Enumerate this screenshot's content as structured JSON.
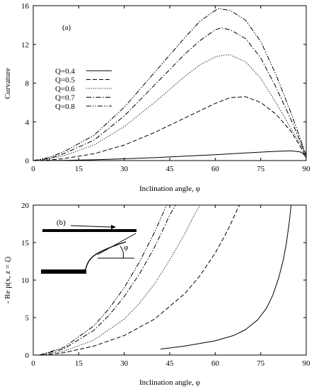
{
  "chart_data": [
    {
      "type": "line",
      "panel_label": "(a)",
      "xlabel": "Inclination angle, φ",
      "ylabel": "Curvature",
      "xlim": [
        0,
        90
      ],
      "ylim": [
        0,
        16
      ],
      "xticks": [
        "0",
        "15",
        "30",
        "45",
        "60",
        "75",
        "90"
      ],
      "yticks": [
        "0",
        "4",
        "8",
        "12",
        "16"
      ],
      "legend_position": "left",
      "series": [
        {
          "name": "Q=0.4",
          "dash": "solid",
          "x": [
            0,
            10,
            20,
            30,
            40,
            50,
            60,
            70,
            80,
            85,
            88,
            89,
            90
          ],
          "y": [
            0,
            0.02,
            0.08,
            0.18,
            0.3,
            0.45,
            0.6,
            0.78,
            0.95,
            1.0,
            0.9,
            0.7,
            0.3
          ]
        },
        {
          "name": "Q=0.5",
          "dash": "dashed",
          "x": [
            0,
            5,
            10,
            20,
            30,
            40,
            50,
            60,
            65,
            70,
            75,
            80,
            85,
            88,
            90
          ],
          "y": [
            0,
            0.05,
            0.2,
            0.7,
            1.6,
            2.9,
            4.4,
            5.9,
            6.5,
            6.6,
            6.0,
            4.8,
            3.0,
            1.5,
            0.3
          ]
        },
        {
          "name": "Q=0.6",
          "dash": "dotted",
          "x": [
            0,
            5,
            10,
            20,
            30,
            40,
            50,
            55,
            60,
            63,
            65,
            70,
            75,
            80,
            85,
            88,
            90
          ],
          "y": [
            0,
            0.15,
            0.5,
            1.6,
            3.5,
            6.0,
            8.7,
            9.9,
            10.7,
            10.9,
            10.9,
            10.2,
            8.5,
            6.0,
            3.3,
            1.7,
            0.4
          ]
        },
        {
          "name": "Q=0.7",
          "dash": "dash-dot",
          "x": [
            0,
            5,
            10,
            20,
            30,
            40,
            50,
            55,
            60,
            62,
            65,
            70,
            75,
            80,
            85,
            88,
            90
          ],
          "y": [
            0,
            0.2,
            0.7,
            2.1,
            4.6,
            7.8,
            11.0,
            12.4,
            13.5,
            13.7,
            13.5,
            12.6,
            10.6,
            7.6,
            4.2,
            2.0,
            0.5
          ]
        },
        {
          "name": "Q=0.8",
          "dash": "dash-dot-dot",
          "x": [
            0,
            5,
            10,
            20,
            30,
            40,
            50,
            55,
            60,
            61,
            65,
            70,
            75,
            80,
            85,
            88,
            90
          ],
          "y": [
            0,
            0.3,
            0.9,
            2.6,
            5.5,
            9.1,
            12.7,
            14.4,
            15.5,
            15.7,
            15.5,
            14.5,
            12.3,
            8.9,
            4.9,
            2.3,
            0.5
          ]
        }
      ]
    },
    {
      "type": "line",
      "panel_label": "(b)",
      "xlabel": "Inclination angle, φ",
      "ylabel": "- Re p(x, z = ζ)",
      "xlim": [
        0,
        90
      ],
      "ylim": [
        0,
        20
      ],
      "xticks": [
        "0",
        "15",
        "30",
        "45",
        "60",
        "75",
        "90"
      ],
      "yticks": [
        "0",
        "5",
        "10",
        "15",
        "20"
      ],
      "inset_label": "φ",
      "series": [
        {
          "name": "Q=0.4",
          "dash": "solid",
          "x": [
            42,
            50,
            60,
            66,
            70,
            74,
            77,
            79,
            81,
            82.5,
            83.5,
            84.5,
            85
          ],
          "y": [
            0.8,
            1.2,
            1.9,
            2.6,
            3.4,
            4.7,
            6.3,
            8.0,
            10.4,
            12.8,
            15.0,
            18.0,
            20
          ]
        },
        {
          "name": "Q=0.5",
          "dash": "dashed",
          "x": [
            3,
            10,
            20,
            30,
            40,
            50,
            55,
            60,
            63,
            65,
            67,
            68
          ],
          "y": [
            0,
            0.3,
            1.2,
            2.6,
            4.8,
            8.2,
            10.6,
            13.6,
            15.8,
            17.4,
            19.2,
            20
          ]
        },
        {
          "name": "Q=0.6",
          "dash": "dotted",
          "x": [
            2,
            10,
            20,
            30,
            35,
            40,
            45,
            50,
            53,
            55
          ],
          "y": [
            0,
            0.5,
            2.0,
            4.8,
            6.9,
            9.5,
            12.7,
            16.2,
            18.6,
            20
          ]
        },
        {
          "name": "Q=0.7",
          "dash": "dash-dot",
          "x": [
            2,
            10,
            20,
            25,
            30,
            35,
            40,
            43,
            45,
            47
          ],
          "y": [
            0,
            0.8,
            3.3,
            5.3,
            7.8,
            10.8,
            14.4,
            16.9,
            18.7,
            20
          ]
        },
        {
          "name": "Q=0.8",
          "dash": "dash-dot-dot",
          "x": [
            2,
            10,
            20,
            25,
            30,
            35,
            40,
            42,
            44
          ],
          "y": [
            0,
            1.0,
            3.9,
            6.2,
            9.0,
            12.4,
            16.4,
            18.2,
            20
          ]
        }
      ]
    }
  ]
}
